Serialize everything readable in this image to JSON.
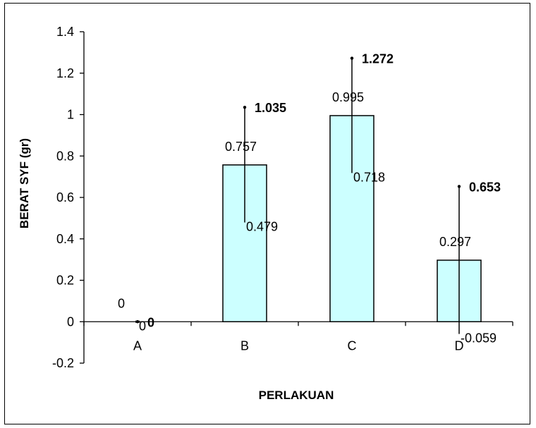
{
  "chart_data": {
    "type": "bar",
    "categories": [
      "A",
      "B",
      "C",
      "D"
    ],
    "values": [
      0,
      0.757,
      0.995,
      0.297
    ],
    "value_labels": [
      "0",
      "0.757",
      "0.995",
      "0.297"
    ],
    "error_low": [
      0,
      0.479,
      0.718,
      -0.059
    ],
    "error_low_labels": [
      "0",
      "0.479",
      "0.718",
      "-0.059"
    ],
    "error_high": [
      0,
      1.035,
      1.272,
      0.653
    ],
    "error_high_labels": [
      "0",
      "1.035",
      "1.272",
      "0.653"
    ],
    "xlabel": "PERLAKUAN",
    "ylabel": "BERAT SYF (gr)",
    "ylim": [
      -0.2,
      1.4
    ],
    "yticks": [
      -0.2,
      0,
      0.2,
      0.4,
      0.6,
      0.8,
      1,
      1.2,
      1.4
    ],
    "ytick_labels": [
      "-0.2",
      "0",
      "0.2",
      "0.4",
      "0.6",
      "0.8",
      "1",
      "1.2",
      "1.4"
    ],
    "grid": false,
    "legend": false,
    "colors": {
      "bar_fill": "#ccffff",
      "bar_stroke": "#000000",
      "axis": "#000000"
    }
  }
}
